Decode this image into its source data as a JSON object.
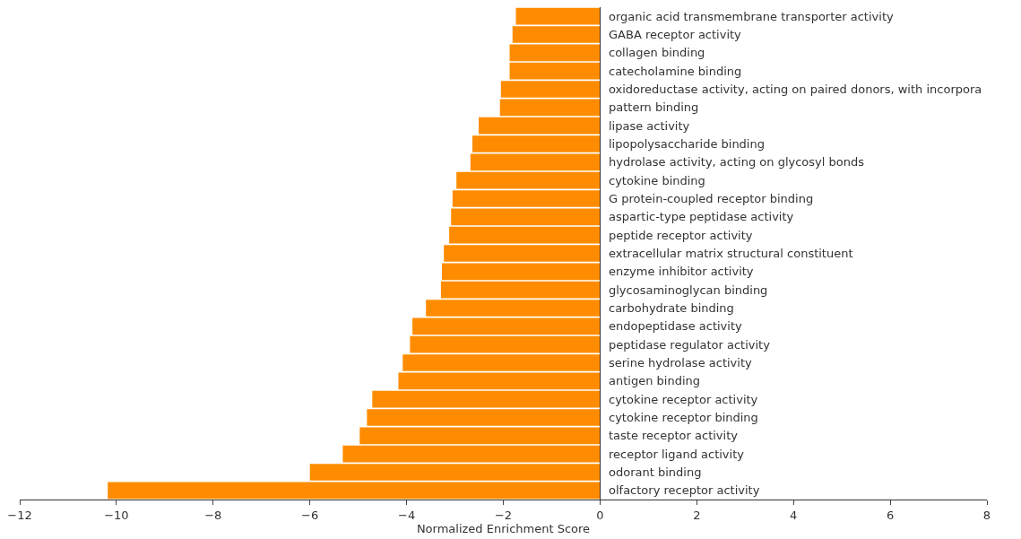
{
  "chart_data": {
    "type": "bar",
    "orientation": "horizontal",
    "xlabel": "Normalized Enrichment Score",
    "categories": [
      "organic acid transmembrane transporter activity",
      "GABA receptor activity",
      "collagen binding",
      "catecholamine binding",
      "oxidoreductase activity, acting on paired donors, with incorpora",
      "pattern binding",
      "lipase activity",
      "lipopolysaccharide binding",
      "hydrolase activity, acting on glycosyl bonds",
      "cytokine binding",
      "G protein-coupled receptor binding",
      "aspartic-type peptidase activity",
      "peptide receptor activity",
      "extracellular matrix structural constituent",
      "enzyme inhibitor activity",
      "glycosaminoglycan binding",
      "carbohydrate binding",
      "endopeptidase activity",
      "peptidase regulator activity",
      "serine hydrolase activity",
      "antigen binding",
      "cytokine receptor activity",
      "cytokine receptor binding",
      "taste receptor activity",
      "receptor ligand activity",
      "odorant binding",
      "olfactory receptor activity"
    ],
    "values": [
      -1.74,
      -1.81,
      -1.87,
      -1.87,
      -2.05,
      -2.07,
      -2.51,
      -2.64,
      -2.68,
      -2.97,
      -3.05,
      -3.08,
      -3.12,
      -3.23,
      -3.27,
      -3.29,
      -3.6,
      -3.88,
      -3.93,
      -4.08,
      -4.17,
      -4.71,
      -4.82,
      -4.97,
      -5.32,
      -6.0,
      -10.18
    ],
    "color": "#ff8c00",
    "xlim": [
      -12,
      8
    ],
    "xticks": [
      -12,
      -10,
      -8,
      -6,
      -4,
      -2,
      0,
      2,
      4,
      6,
      8
    ],
    "legend": false
  }
}
